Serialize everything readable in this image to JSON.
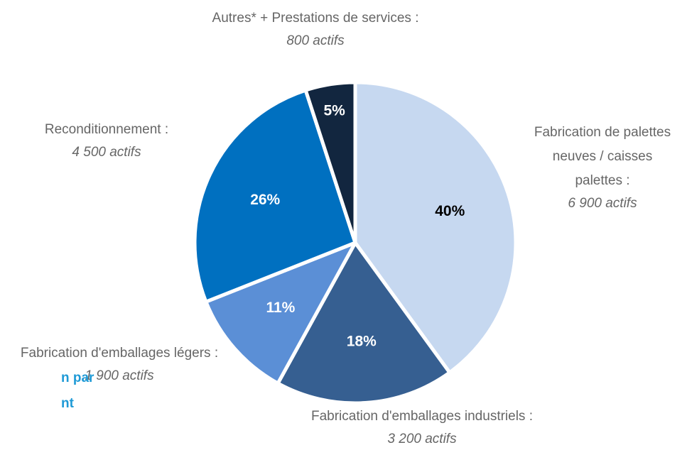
{
  "chart_data": {
    "type": "pie",
    "categories": [
      "Fabrication de palettes neuves / caisses palettes :",
      "Fabrication d'emballages industriels :",
      "Fabrication d'emballages légers :",
      "Reconditionnement :",
      "Autres* + Prestations de services :"
    ],
    "values": [
      40,
      18,
      11,
      26,
      5
    ],
    "value_labels": [
      "40%",
      "18%",
      "11%",
      "26%",
      "5%"
    ],
    "sublabels": [
      "6 900 actifs",
      "3 200 actifs",
      "1 900 actifs",
      "4 500 actifs",
      "800 actifs"
    ],
    "colors": [
      "#c6d8f0",
      "#365f91",
      "#5b8fd6",
      "#0070c0",
      "#12263f"
    ],
    "value_label_colors": [
      "#000000",
      "#ffffff",
      "#ffffff",
      "#ffffff",
      "#ffffff"
    ],
    "side_text": [
      "n par",
      "nt"
    ]
  }
}
